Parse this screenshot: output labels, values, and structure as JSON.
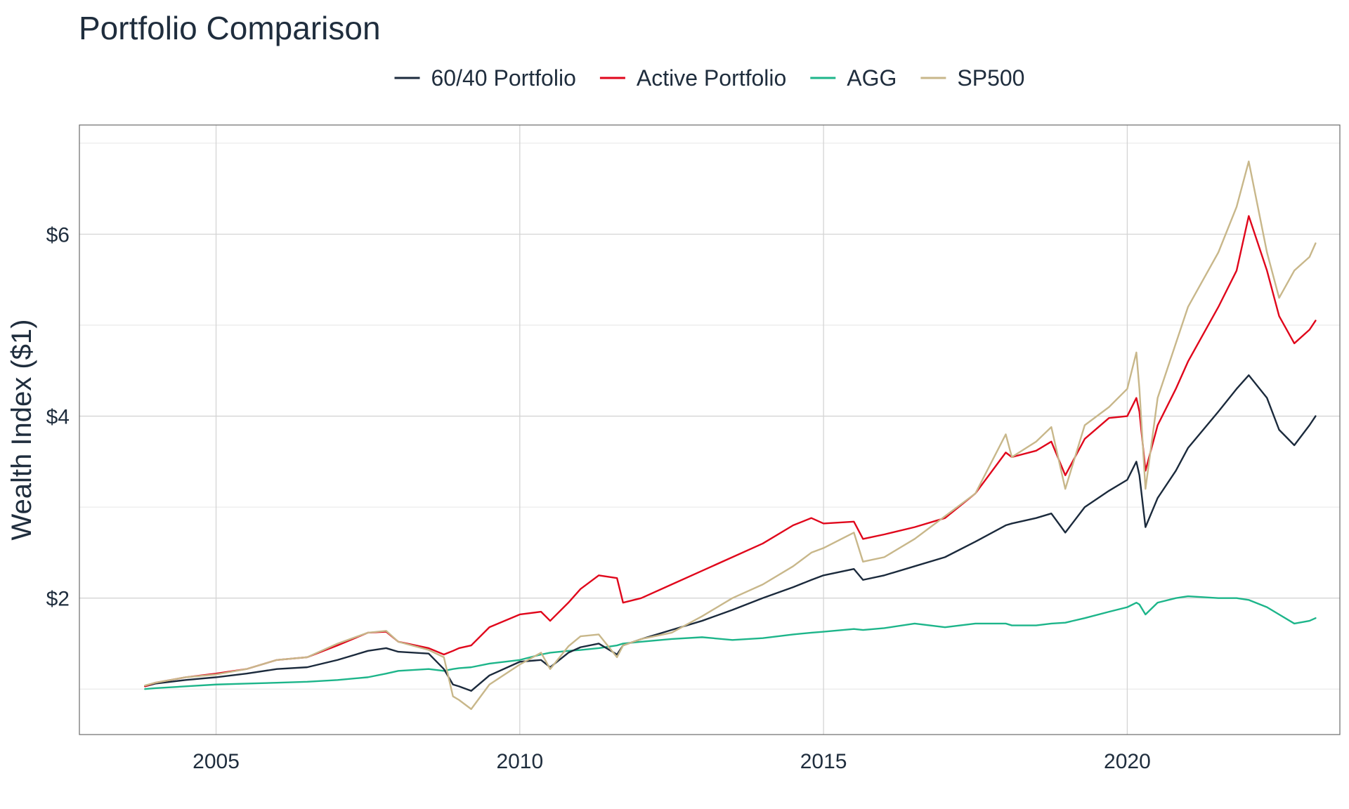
{
  "chart_data": {
    "type": "line",
    "title": "Portfolio Comparison",
    "xlabel": "",
    "ylabel": "Wealth Index ($1)",
    "xlim": [
      2002.75,
      2023.5
    ],
    "ylim": [
      0.5,
      7.2
    ],
    "x_ticks": [
      2005,
      2010,
      2015,
      2020
    ],
    "x_tick_labels": [
      "2005",
      "2010",
      "2015",
      "2020"
    ],
    "y_ticks": [
      2,
      4,
      6
    ],
    "y_tick_labels": [
      "$2",
      "$4",
      "$6"
    ],
    "y_minor_ticks": [
      1,
      3,
      5,
      7
    ],
    "grid": true,
    "legend_position": "top",
    "x": [
      2003.83,
      2004.0,
      2004.5,
      2005.0,
      2005.5,
      2006.0,
      2006.5,
      2007.0,
      2007.5,
      2007.8,
      2008.0,
      2008.5,
      2008.75,
      2008.9,
      2009.0,
      2009.2,
      2009.5,
      2010.0,
      2010.35,
      2010.5,
      2010.8,
      2011.0,
      2011.3,
      2011.6,
      2011.7,
      2012.0,
      2012.5,
      2013.0,
      2013.5,
      2014.0,
      2014.5,
      2014.8,
      2015.0,
      2015.5,
      2015.65,
      2016.0,
      2016.5,
      2017.0,
      2017.5,
      2018.0,
      2018.1,
      2018.5,
      2018.75,
      2018.98,
      2019.3,
      2019.7,
      2020.0,
      2020.15,
      2020.2,
      2020.3,
      2020.5,
      2020.8,
      2021.0,
      2021.5,
      2021.8,
      2022.0,
      2022.3,
      2022.5,
      2022.75,
      2023.0,
      2023.1
    ],
    "series": [
      {
        "name": "60/40 Portfolio",
        "color": "#1b2a3c",
        "values": [
          1.03,
          1.06,
          1.1,
          1.13,
          1.17,
          1.22,
          1.24,
          1.32,
          1.42,
          1.45,
          1.41,
          1.39,
          1.22,
          1.05,
          1.03,
          0.98,
          1.15,
          1.3,
          1.32,
          1.24,
          1.4,
          1.46,
          1.5,
          1.38,
          1.48,
          1.55,
          1.65,
          1.75,
          1.87,
          2.0,
          2.12,
          2.2,
          2.25,
          2.32,
          2.2,
          2.25,
          2.35,
          2.45,
          2.62,
          2.8,
          2.82,
          2.88,
          2.93,
          2.72,
          3.0,
          3.18,
          3.3,
          3.5,
          3.35,
          2.78,
          3.1,
          3.4,
          3.65,
          4.05,
          4.3,
          4.45,
          4.2,
          3.85,
          3.68,
          3.9,
          4.0
        ]
      },
      {
        "name": "Active Portfolio",
        "color": "#e0061b",
        "values": [
          1.03,
          1.07,
          1.13,
          1.17,
          1.22,
          1.32,
          1.35,
          1.48,
          1.62,
          1.63,
          1.52,
          1.45,
          1.38,
          1.42,
          1.45,
          1.48,
          1.68,
          1.82,
          1.85,
          1.75,
          1.95,
          2.1,
          2.25,
          2.22,
          1.95,
          2.0,
          2.15,
          2.3,
          2.45,
          2.6,
          2.8,
          2.88,
          2.82,
          2.84,
          2.65,
          2.7,
          2.78,
          2.88,
          3.15,
          3.6,
          3.55,
          3.62,
          3.72,
          3.35,
          3.75,
          3.98,
          4.0,
          4.2,
          4.05,
          3.4,
          3.9,
          4.3,
          4.6,
          5.2,
          5.6,
          6.2,
          5.6,
          5.1,
          4.8,
          4.95,
          5.05
        ]
      },
      {
        "name": "AGG",
        "color": "#1db58a",
        "values": [
          1.0,
          1.01,
          1.03,
          1.05,
          1.06,
          1.07,
          1.08,
          1.1,
          1.13,
          1.17,
          1.2,
          1.22,
          1.2,
          1.22,
          1.23,
          1.24,
          1.28,
          1.32,
          1.38,
          1.4,
          1.42,
          1.43,
          1.45,
          1.48,
          1.5,
          1.52,
          1.55,
          1.57,
          1.54,
          1.56,
          1.6,
          1.62,
          1.63,
          1.66,
          1.65,
          1.67,
          1.72,
          1.68,
          1.72,
          1.72,
          1.7,
          1.7,
          1.72,
          1.73,
          1.78,
          1.85,
          1.9,
          1.95,
          1.93,
          1.82,
          1.95,
          2.0,
          2.02,
          2.0,
          2.0,
          1.98,
          1.9,
          1.82,
          1.72,
          1.75,
          1.78
        ]
      },
      {
        "name": "SP500",
        "color": "#c8b78a",
        "values": [
          1.04,
          1.07,
          1.13,
          1.16,
          1.22,
          1.32,
          1.35,
          1.5,
          1.62,
          1.64,
          1.52,
          1.43,
          1.35,
          0.92,
          0.88,
          0.78,
          1.05,
          1.27,
          1.4,
          1.22,
          1.47,
          1.58,
          1.6,
          1.35,
          1.48,
          1.55,
          1.62,
          1.8,
          2.0,
          2.15,
          2.35,
          2.5,
          2.55,
          2.72,
          2.4,
          2.45,
          2.65,
          2.9,
          3.15,
          3.8,
          3.55,
          3.72,
          3.88,
          3.2,
          3.9,
          4.1,
          4.3,
          4.7,
          4.3,
          3.2,
          4.2,
          4.8,
          5.2,
          5.8,
          6.3,
          6.8,
          5.8,
          5.3,
          5.6,
          5.75,
          5.9
        ]
      }
    ]
  }
}
